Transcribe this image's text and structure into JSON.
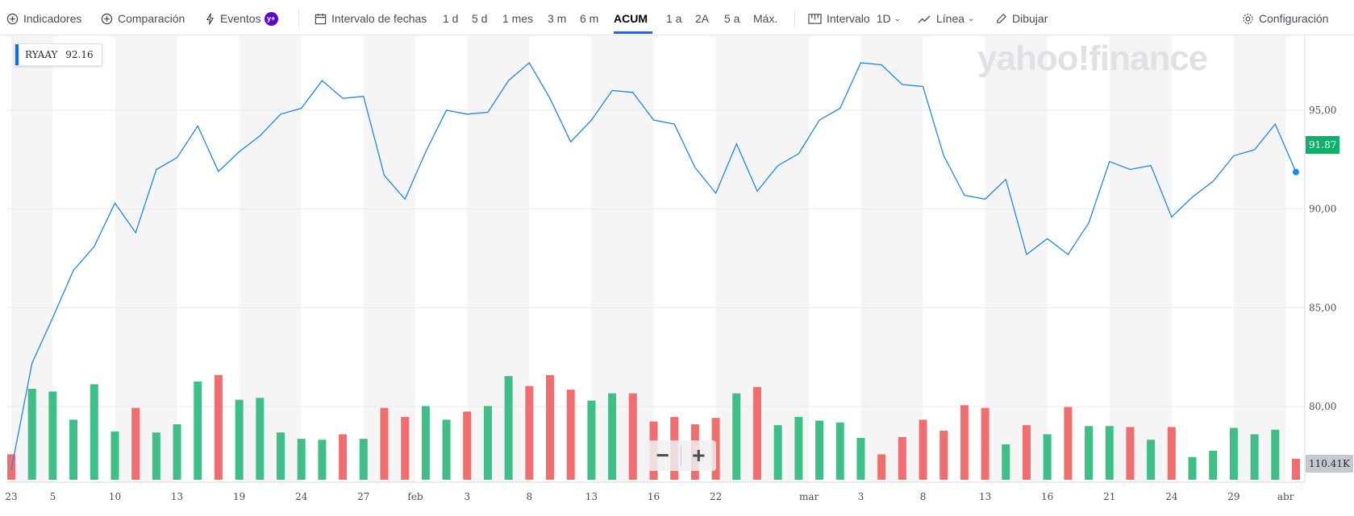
{
  "toolbar": {
    "indicators": "Indicadores",
    "comparison": "Comparación",
    "events": "Eventos",
    "events_badge": "y+",
    "date_interval": "Intervalo de fechas",
    "ranges": [
      "1 d",
      "5 d",
      "1 mes",
      "3 m",
      "6 m",
      "ACUM",
      "1 a",
      "2A",
      "5 a",
      "Máx."
    ],
    "active_range": "ACUM",
    "interval_label": "Intervalo",
    "interval_value": "1D",
    "chart_type": "Línea",
    "draw": "Dibujar",
    "settings": "Configuración"
  },
  "ticker_label": {
    "symbol": "RYAAY",
    "value": "92.16"
  },
  "watermark": "yahoo!finance",
  "last_price_label": "91.87",
  "last_volume_label": "110.41K",
  "colors": {
    "line": "#1e88e5",
    "up": "#3dbf87",
    "down": "#f26d6d",
    "last_price_bg": "#0fb06c",
    "band": "#f5f5f5"
  },
  "icons": [
    "plus-circle-icon",
    "bolt-icon",
    "calendar-icon",
    "ruler-icon",
    "line-chart-icon",
    "pencil-icon",
    "gear-icon"
  ],
  "chart_data": {
    "type": "line",
    "title": "",
    "symbol": "RYAAY",
    "ylim": [
      76.5,
      98.5
    ],
    "y_ticks": [
      "95,00",
      "90,00",
      "85,00",
      "80,00"
    ],
    "y_tick_values": [
      95,
      90,
      85,
      80
    ],
    "x_tick_labels": [
      {
        "i": 0,
        "label": "23"
      },
      {
        "i": 2,
        "label": "5"
      },
      {
        "i": 5,
        "label": "10"
      },
      {
        "i": 8,
        "label": "13"
      },
      {
        "i": 11,
        "label": "19"
      },
      {
        "i": 14,
        "label": "24"
      },
      {
        "i": 17,
        "label": "27"
      },
      {
        "i": 19.5,
        "label": "feb"
      },
      {
        "i": 22,
        "label": "3"
      },
      {
        "i": 25,
        "label": "8"
      },
      {
        "i": 28,
        "label": "13"
      },
      {
        "i": 31,
        "label": "16"
      },
      {
        "i": 34,
        "label": "22"
      },
      {
        "i": 38.5,
        "label": "mar"
      },
      {
        "i": 41,
        "label": "3"
      },
      {
        "i": 44,
        "label": "8"
      },
      {
        "i": 47,
        "label": "13"
      },
      {
        "i": 50,
        "label": "16"
      },
      {
        "i": 53,
        "label": "21"
      },
      {
        "i": 56,
        "label": "24"
      },
      {
        "i": 59,
        "label": "29"
      },
      {
        "i": 61.5,
        "label": "abr"
      }
    ],
    "series": [
      {
        "values": [
          76.8,
          82.2,
          84.5,
          86.9,
          88.1,
          90.3,
          88.8,
          92.0,
          92.6,
          94.2,
          91.9,
          92.9,
          93.7,
          94.8,
          95.1,
          96.5,
          95.6,
          95.7,
          91.7,
          90.5,
          92.9,
          95.0,
          94.8,
          94.9,
          96.5,
          97.4,
          95.6,
          93.4,
          94.5,
          96.0,
          95.9,
          94.5,
          94.3,
          92.1,
          90.8,
          93.3,
          90.9,
          92.2,
          92.8,
          94.5,
          95.1,
          97.4,
          97.3,
          96.3,
          96.2,
          92.7,
          90.7,
          90.5,
          91.5,
          87.7,
          88.5,
          87.7,
          89.3,
          92.4,
          92.0,
          92.2,
          89.6,
          90.6,
          91.4,
          92.7,
          93.0,
          94.3,
          91.87
        ]
      }
    ],
    "volume": {
      "values": [
        0.28,
        1.0,
        0.97,
        0.66,
        1.05,
        0.53,
        0.79,
        0.52,
        0.61,
        1.08,
        1.15,
        0.88,
        0.9,
        0.52,
        0.45,
        0.44,
        0.5,
        0.45,
        0.79,
        0.69,
        0.81,
        0.66,
        0.75,
        0.81,
        1.14,
        1.03,
        1.15,
        0.99,
        0.87,
        0.95,
        0.95,
        0.64,
        0.69,
        0.61,
        0.68,
        0.95,
        1.02,
        0.6,
        0.69,
        0.65,
        0.63,
        0.46,
        0.28,
        0.47,
        0.66,
        0.54,
        0.82,
        0.79,
        0.39,
        0.6,
        0.5,
        0.8,
        0.59,
        0.59,
        0.58,
        0.44,
        0.58,
        0.25,
        0.32,
        0.57,
        0.5,
        0.55,
        0.23
      ],
      "up": [
        false,
        true,
        true,
        true,
        true,
        true,
        false,
        true,
        true,
        true,
        false,
        true,
        true,
        true,
        true,
        true,
        false,
        true,
        false,
        false,
        true,
        true,
        false,
        true,
        true,
        false,
        false,
        false,
        true,
        true,
        false,
        false,
        false,
        false,
        false,
        true,
        false,
        true,
        true,
        true,
        true,
        true,
        false,
        false,
        false,
        false,
        false,
        false,
        true,
        false,
        true,
        false,
        true,
        true,
        false,
        true,
        false,
        true,
        true,
        true,
        true,
        true,
        false
      ],
      "max_label": "",
      "last_label": "110.41K"
    }
  }
}
